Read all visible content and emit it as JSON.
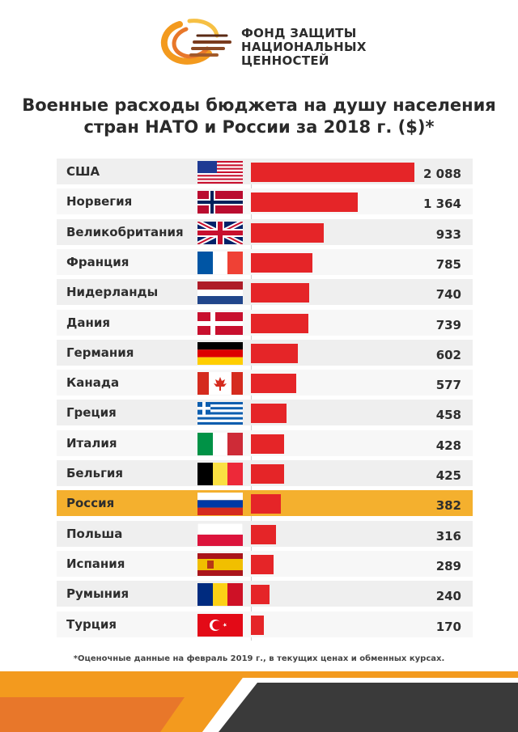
{
  "organization": {
    "name_lines": [
      "ФОНД ЗАЩИТЫ",
      "НАЦИОНАЛЬНЫХ",
      "ЦЕННОСТЕЙ"
    ]
  },
  "title_lines": [
    "Военные расходы бюджета на душу населения",
    "стран НАТО и России за 2018 г. ($)*"
  ],
  "footnote": "*Оценочные данные на февраль 2019 г., в текущих ценах и обменных курсах.",
  "colors": {
    "bar": "#e52528",
    "highlight_row": "#f4b02e",
    "row": "#efefef",
    "footer_orange": "#f39a1e",
    "footer_dark": "#3a3a3a"
  },
  "chart_data": {
    "type": "bar",
    "orientation": "horizontal",
    "title": "Военные расходы бюджета на душу населения стран НАТО и России за 2018 г. ($)*",
    "categories": [
      "США",
      "Норвегия",
      "Великобритания",
      "Франция",
      "Нидерланды",
      "Дания",
      "Германия",
      "Канада",
      "Греция",
      "Италия",
      "Бельгия",
      "Россия",
      "Польша",
      "Испания",
      "Румыния",
      "Турция"
    ],
    "value_labels": [
      "2 088",
      "1 364",
      "933",
      "785",
      "740",
      "739",
      "602",
      "577",
      "458",
      "428",
      "425",
      "382",
      "316",
      "289",
      "240",
      "170"
    ],
    "values": [
      2088,
      1364,
      933,
      785,
      740,
      739,
      602,
      577,
      458,
      428,
      425,
      382,
      316,
      289,
      240,
      170
    ],
    "flags": [
      "usa-flag",
      "norway-flag",
      "uk-flag",
      "france-flag",
      "netherlands-flag",
      "denmark-flag",
      "germany-flag",
      "canada-flag",
      "greece-flag",
      "italy-flag",
      "belgium-flag",
      "russia-flag",
      "poland-flag",
      "spain-flag",
      "romania-flag",
      "turkey-flag"
    ],
    "highlight": "Россия",
    "bar_color": "#e52528",
    "grid": false
  }
}
